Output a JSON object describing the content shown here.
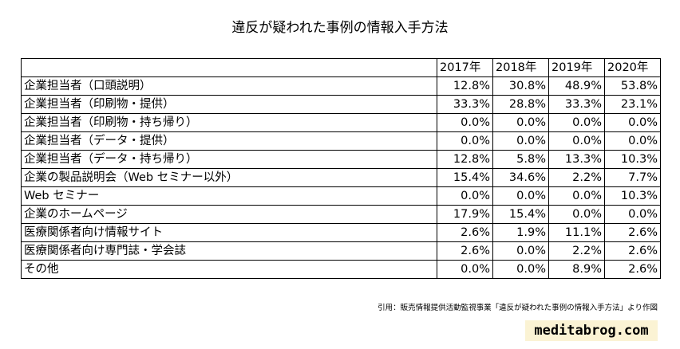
{
  "chart_data": {
    "type": "table",
    "title": "違反が疑われた事例の情報入手方法",
    "columns": [
      "",
      "2017年",
      "2018年",
      "2019年",
      "2020年"
    ],
    "rows": [
      {
        "label": "企業担当者（口頭説明）",
        "values": [
          "12.8%",
          "30.8%",
          "48.9%",
          "53.8%"
        ]
      },
      {
        "label": "企業担当者（印刷物・提供）",
        "values": [
          "33.3%",
          "28.8%",
          "33.3%",
          "23.1%"
        ]
      },
      {
        "label": "企業担当者（印刷物・持ち帰り）",
        "values": [
          "0.0%",
          "0.0%",
          "0.0%",
          "0.0%"
        ]
      },
      {
        "label": "企業担当者（データ・提供）",
        "values": [
          "0.0%",
          "0.0%",
          "0.0%",
          "0.0%"
        ]
      },
      {
        "label": "企業担当者（データ・持ち帰り）",
        "values": [
          "12.8%",
          "5.8%",
          "13.3%",
          "10.3%"
        ]
      },
      {
        "label": "企業の製品説明会（Web セミナー以外）",
        "values": [
          "15.4%",
          "34.6%",
          "2.2%",
          "7.7%"
        ]
      },
      {
        "label": "Web セミナー",
        "values": [
          "0.0%",
          "0.0%",
          "0.0%",
          "10.3%"
        ]
      },
      {
        "label": "企業のホームページ",
        "values": [
          "17.9%",
          "15.4%",
          "0.0%",
          "0.0%"
        ]
      },
      {
        "label": "医療関係者向け情報サイト",
        "values": [
          "2.6%",
          "1.9%",
          "11.1%",
          "2.6%"
        ]
      },
      {
        "label": "医療関係者向け専門誌・学会誌",
        "values": [
          "2.6%",
          "0.0%",
          "2.2%",
          "2.6%"
        ]
      },
      {
        "label": "その他",
        "values": [
          "0.0%",
          "0.0%",
          "8.9%",
          "2.6%"
        ]
      }
    ]
  },
  "footer": {
    "source": "引用：販売情報提供活動監視事業「違反が疑われた事例の情報入手方法」より作図",
    "brand": "meditabrog.com"
  },
  "colors": {
    "brand_background": "#fbf3d4",
    "border": "#000000"
  }
}
